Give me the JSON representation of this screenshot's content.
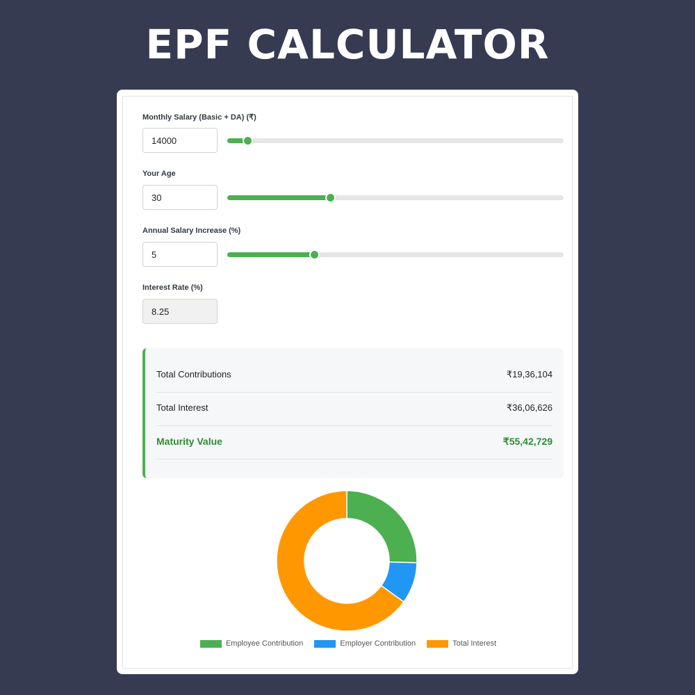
{
  "header": {
    "title": "EPF CALCULATOR"
  },
  "form": {
    "salary": {
      "label": "Monthly Salary (Basic + DA) (₹)",
      "value": "14000",
      "slider_fraction": 0.06
    },
    "age": {
      "label": "Your Age",
      "value": "30",
      "slider_fraction": 0.305
    },
    "increase": {
      "label": "Annual Salary Increase (%)",
      "value": "5",
      "slider_fraction": 0.258
    },
    "interest": {
      "label": "Interest Rate (%)",
      "value": "8.25"
    }
  },
  "results": {
    "contributions_label": "Total Contributions",
    "contributions_value": "₹19,36,104",
    "interest_label": "Total Interest",
    "interest_value": "₹36,06,626",
    "maturity_label": "Maturity Value",
    "maturity_value": "₹55,42,729"
  },
  "chart_data": {
    "type": "pie",
    "categories": [
      "Employee Contribution",
      "Employer Contribution",
      "Total Interest"
    ],
    "values": [
      1410000,
      526104,
      3606626
    ],
    "colors": [
      "#4caf50",
      "#2196f3",
      "#ff9800"
    ],
    "legend_position": "bottom",
    "donut": true
  }
}
